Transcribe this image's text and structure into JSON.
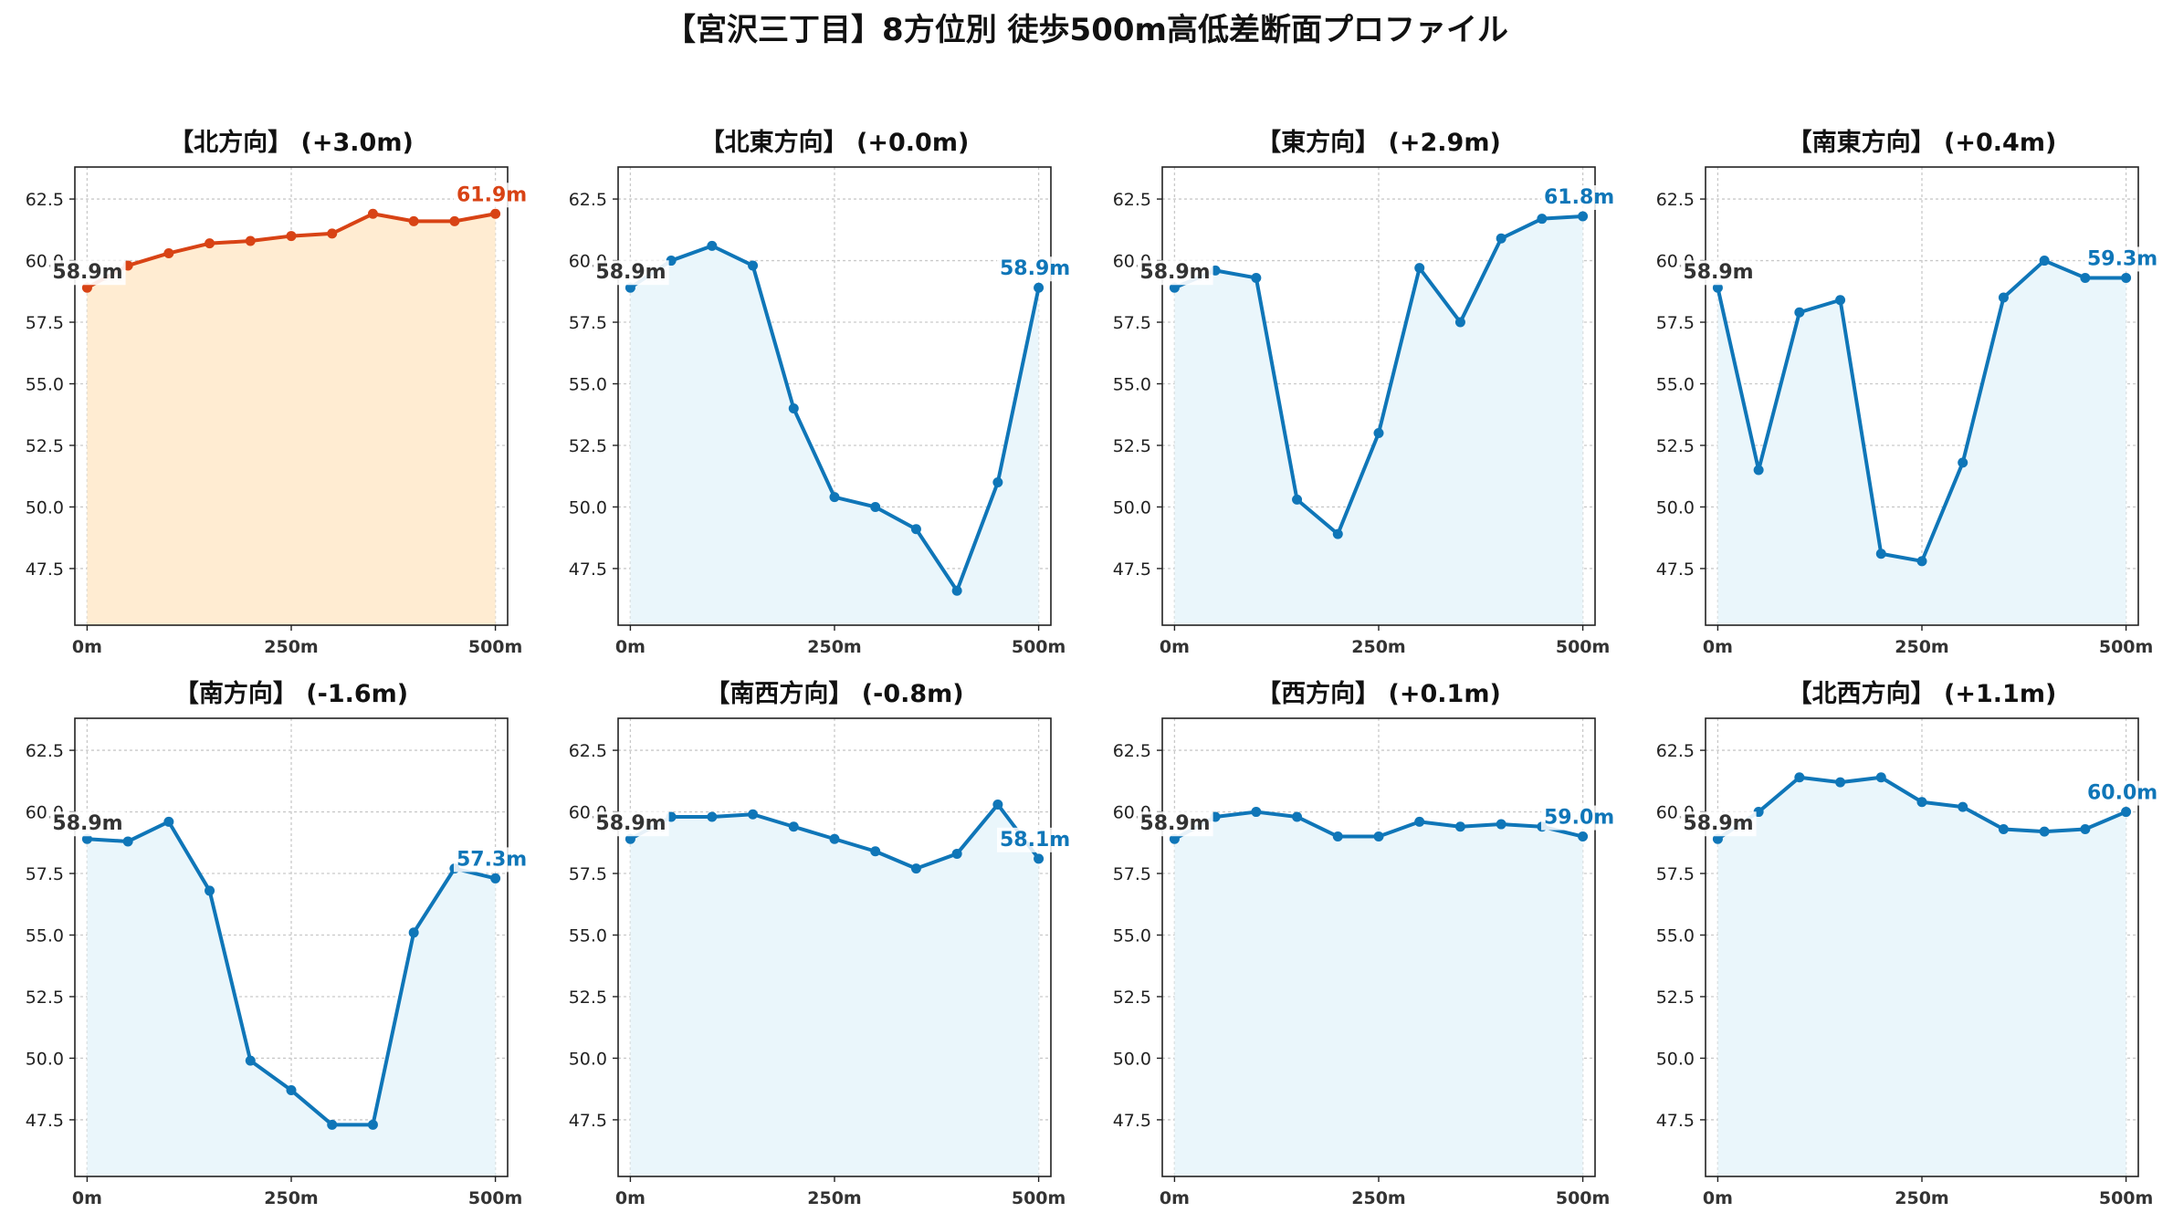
{
  "suptitle": "【宮沢三丁目】8方位別 徒歩500m高低差断面プロファイル",
  "colors": {
    "up_line": "#d84315",
    "up_fill": "#ffecd2",
    "flat_line": "#0f76b8",
    "flat_fill": "#eaf6fb",
    "start_label": "#333333"
  },
  "chart_data": [
    {
      "type": "area",
      "title": "【北方向】 (+3.0m)",
      "highlight": true,
      "x": [
        0,
        50,
        100,
        150,
        200,
        250,
        300,
        350,
        400,
        450,
        500
      ],
      "values": [
        58.9,
        59.8,
        60.3,
        60.7,
        60.8,
        61.0,
        61.1,
        61.9,
        61.6,
        61.6,
        61.9
      ],
      "start_label": "58.9m",
      "end_label": "61.9m",
      "xticks": [
        "0m",
        "250m",
        "500m"
      ],
      "yticks": [
        "47.5",
        "50.0",
        "52.5",
        "55.0",
        "57.5",
        "60.0",
        "62.5"
      ],
      "ylim": [
        45.2,
        63.8
      ],
      "xlim": [
        -15,
        515
      ],
      "grid": true
    },
    {
      "type": "area",
      "title": "【北東方向】 (+0.0m)",
      "highlight": false,
      "x": [
        0,
        50,
        100,
        150,
        200,
        250,
        300,
        350,
        400,
        450,
        500
      ],
      "values": [
        58.9,
        60.0,
        60.6,
        59.8,
        54.0,
        50.4,
        50.0,
        49.1,
        46.6,
        51.0,
        58.9
      ],
      "start_label": "58.9m",
      "end_label": "58.9m",
      "xticks": [
        "0m",
        "250m",
        "500m"
      ],
      "yticks": [
        "47.5",
        "50.0",
        "52.5",
        "55.0",
        "57.5",
        "60.0",
        "62.5"
      ],
      "ylim": [
        45.2,
        63.8
      ],
      "xlim": [
        -15,
        515
      ],
      "grid": true
    },
    {
      "type": "area",
      "title": "【東方向】 (+2.9m)",
      "highlight": false,
      "x": [
        0,
        50,
        100,
        150,
        200,
        250,
        300,
        350,
        400,
        450,
        500
      ],
      "values": [
        58.9,
        59.6,
        59.3,
        50.3,
        48.9,
        53.0,
        59.7,
        57.5,
        60.9,
        61.7,
        61.8
      ],
      "start_label": "58.9m",
      "end_label": "61.8m",
      "xticks": [
        "0m",
        "250m",
        "500m"
      ],
      "yticks": [
        "47.5",
        "50.0",
        "52.5",
        "55.0",
        "57.5",
        "60.0",
        "62.5"
      ],
      "ylim": [
        45.2,
        63.8
      ],
      "xlim": [
        -15,
        515
      ],
      "grid": true
    },
    {
      "type": "area",
      "title": "【南東方向】 (+0.4m)",
      "highlight": false,
      "x": [
        0,
        50,
        100,
        150,
        200,
        250,
        300,
        350,
        400,
        450,
        500
      ],
      "values": [
        58.9,
        51.5,
        57.9,
        58.4,
        48.1,
        47.8,
        51.8,
        58.5,
        60.0,
        59.3,
        59.3
      ],
      "start_label": "58.9m",
      "end_label": "59.3m",
      "xticks": [
        "0m",
        "250m",
        "500m"
      ],
      "yticks": [
        "47.5",
        "50.0",
        "52.5",
        "55.0",
        "57.5",
        "60.0",
        "62.5"
      ],
      "ylim": [
        45.2,
        63.8
      ],
      "xlim": [
        -15,
        515
      ],
      "grid": true
    },
    {
      "type": "area",
      "title": "【南方向】 (-1.6m)",
      "highlight": false,
      "x": [
        0,
        50,
        100,
        150,
        200,
        250,
        300,
        350,
        400,
        450,
        500
      ],
      "values": [
        58.9,
        58.8,
        59.6,
        56.8,
        49.9,
        48.7,
        47.3,
        47.3,
        55.1,
        57.7,
        57.3
      ],
      "start_label": "58.9m",
      "end_label": "57.3m",
      "xticks": [
        "0m",
        "250m",
        "500m"
      ],
      "yticks": [
        "47.5",
        "50.0",
        "52.5",
        "55.0",
        "57.5",
        "60.0",
        "62.5"
      ],
      "ylim": [
        45.2,
        63.8
      ],
      "xlim": [
        -15,
        515
      ],
      "grid": true
    },
    {
      "type": "area",
      "title": "【南西方向】 (-0.8m)",
      "highlight": false,
      "x": [
        0,
        50,
        100,
        150,
        200,
        250,
        300,
        350,
        400,
        450,
        500
      ],
      "values": [
        58.9,
        59.8,
        59.8,
        59.9,
        59.4,
        58.9,
        58.4,
        57.7,
        58.3,
        60.3,
        58.1
      ],
      "start_label": "58.9m",
      "end_label": "58.1m",
      "xticks": [
        "0m",
        "250m",
        "500m"
      ],
      "yticks": [
        "47.5",
        "50.0",
        "52.5",
        "55.0",
        "57.5",
        "60.0",
        "62.5"
      ],
      "ylim": [
        45.2,
        63.8
      ],
      "xlim": [
        -15,
        515
      ],
      "grid": true
    },
    {
      "type": "area",
      "title": "【西方向】 (+0.1m)",
      "highlight": false,
      "x": [
        0,
        50,
        100,
        150,
        200,
        250,
        300,
        350,
        400,
        450,
        500
      ],
      "values": [
        58.9,
        59.8,
        60.0,
        59.8,
        59.0,
        59.0,
        59.6,
        59.4,
        59.5,
        59.4,
        59.0
      ],
      "start_label": "58.9m",
      "end_label": "59.0m",
      "xticks": [
        "0m",
        "250m",
        "500m"
      ],
      "yticks": [
        "47.5",
        "50.0",
        "52.5",
        "55.0",
        "57.5",
        "60.0",
        "62.5"
      ],
      "ylim": [
        45.2,
        63.8
      ],
      "xlim": [
        -15,
        515
      ],
      "grid": true
    },
    {
      "type": "area",
      "title": "【北西方向】 (+1.1m)",
      "highlight": false,
      "x": [
        0,
        50,
        100,
        150,
        200,
        250,
        300,
        350,
        400,
        450,
        500
      ],
      "values": [
        58.9,
        60.0,
        61.4,
        61.2,
        61.4,
        60.4,
        60.2,
        59.3,
        59.2,
        59.3,
        60.0
      ],
      "start_label": "58.9m",
      "end_label": "60.0m",
      "xticks": [
        "0m",
        "250m",
        "500m"
      ],
      "yticks": [
        "47.5",
        "50.0",
        "52.5",
        "55.0",
        "57.5",
        "60.0",
        "62.5"
      ],
      "ylim": [
        45.2,
        63.8
      ],
      "xlim": [
        -15,
        515
      ],
      "grid": true
    }
  ]
}
